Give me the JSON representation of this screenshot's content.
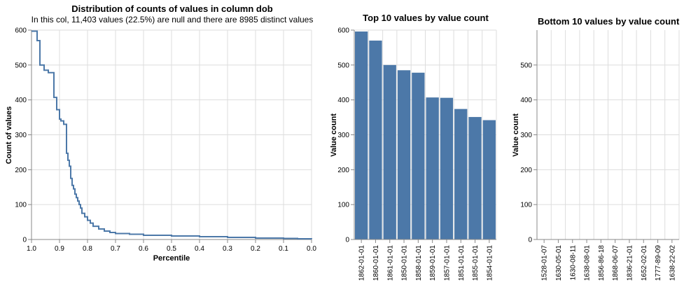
{
  "colors": {
    "bar": "#4c78a8",
    "line": "#4c78a8"
  },
  "chart_data": [
    {
      "type": "line",
      "title": "Distribution of counts of values in column dob",
      "subtitle": "In this col, 11,403 values (22.5%) are null and there are 8985 distinct values",
      "xlabel": "Percentile",
      "ylabel": "Count of values",
      "xlim": [
        1.0,
        0.0
      ],
      "ylim": [
        0,
        600
      ],
      "x_ticks": [
        "1.0",
        "0.9",
        "0.8",
        "0.7",
        "0.6",
        "0.5",
        "0.4",
        "0.3",
        "0.2",
        "0.1",
        "0.0"
      ],
      "y_ticks": [
        "0",
        "100",
        "200",
        "300",
        "400",
        "500",
        "600"
      ],
      "grid": true,
      "line_style": "step",
      "x": [
        1.0,
        0.98,
        0.97,
        0.955,
        0.94,
        0.92,
        0.91,
        0.9,
        0.895,
        0.885,
        0.875,
        0.87,
        0.865,
        0.86,
        0.855,
        0.85,
        0.845,
        0.84,
        0.835,
        0.83,
        0.825,
        0.82,
        0.81,
        0.8,
        0.79,
        0.78,
        0.76,
        0.74,
        0.72,
        0.7,
        0.65,
        0.6,
        0.5,
        0.4,
        0.3,
        0.2,
        0.1,
        0.05,
        0.0
      ],
      "y": [
        597,
        570,
        500,
        485,
        478,
        407,
        372,
        345,
        340,
        330,
        247,
        227,
        210,
        175,
        155,
        145,
        130,
        120,
        110,
        100,
        90,
        75,
        65,
        55,
        47,
        38,
        30,
        24,
        20,
        17,
        15,
        12,
        10,
        8,
        6,
        4,
        3,
        2,
        1
      ]
    },
    {
      "type": "bar",
      "title": "Top 10 values by value count",
      "xlabel": "",
      "ylabel": "Value count",
      "ylim": [
        0,
        600
      ],
      "y_ticks": [
        "0",
        "100",
        "200",
        "300",
        "400",
        "500",
        "600"
      ],
      "grid": true,
      "categories": [
        "1862-01-01",
        "1860-01-01",
        "1861-01-01",
        "1850-01-01",
        "1858-01-01",
        "1859-01-01",
        "1857-01-01",
        "1851-01-01",
        "1855-01-01",
        "1854-01-01"
      ],
      "values": [
        596,
        570,
        500,
        485,
        478,
        407,
        406,
        374,
        351,
        342
      ]
    },
    {
      "type": "bar",
      "title": "Bottom 10 values by value count",
      "xlabel": "",
      "ylabel": "Value count",
      "ylim": [
        0,
        600
      ],
      "y_ticks": [
        "0",
        "100",
        "200",
        "300",
        "400",
        "500"
      ],
      "grid": true,
      "categories": [
        "1528-01-07",
        "1630-05-01",
        "1630-08-11",
        "1638-08-01",
        "1856-86-18",
        "1868-06-07",
        "1836-21-01",
        "1652-02-01",
        "1777-89-09",
        "1638-22-02"
      ],
      "values": [
        1,
        1,
        1,
        1,
        1,
        1,
        1,
        1,
        1,
        1
      ]
    }
  ]
}
